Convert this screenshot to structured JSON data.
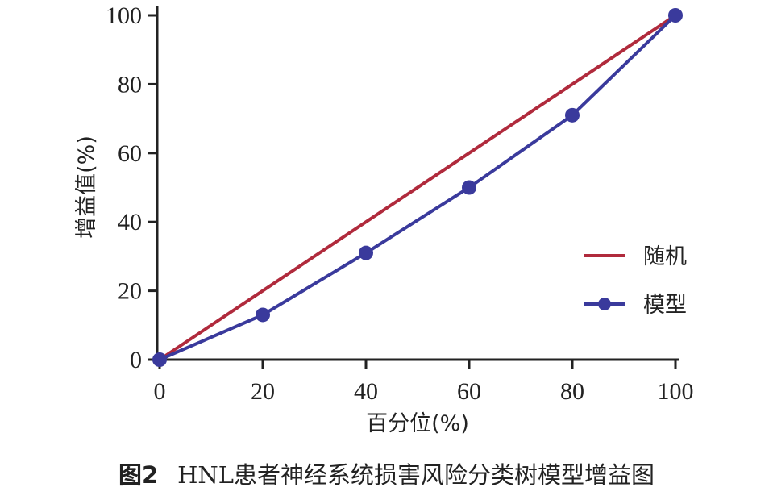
{
  "chart_data": {
    "type": "line",
    "x": [
      0,
      20,
      40,
      60,
      80,
      100
    ],
    "series": [
      {
        "name": "随机",
        "values": [
          0,
          20,
          40,
          60,
          80,
          100
        ],
        "color": "#b02a3c",
        "marker": "none"
      },
      {
        "name": "模型",
        "values": [
          0,
          13,
          31,
          50,
          71,
          100
        ],
        "color": "#3a3a9c",
        "marker": "circle"
      }
    ],
    "xlabel": "百分位(%)",
    "ylabel": "增益值(%)",
    "xlim": [
      0,
      100
    ],
    "ylim": [
      0,
      100
    ],
    "x_ticks": [
      "0",
      "20",
      "40",
      "60",
      "80",
      "100"
    ],
    "y_ticks": [
      "0",
      "20",
      "40",
      "60",
      "80",
      "100"
    ],
    "grid": false,
    "legend_position": "right"
  },
  "caption": {
    "figure_number": "图2",
    "title": "HNL患者神经系统损害风险分类树模型增益图"
  }
}
